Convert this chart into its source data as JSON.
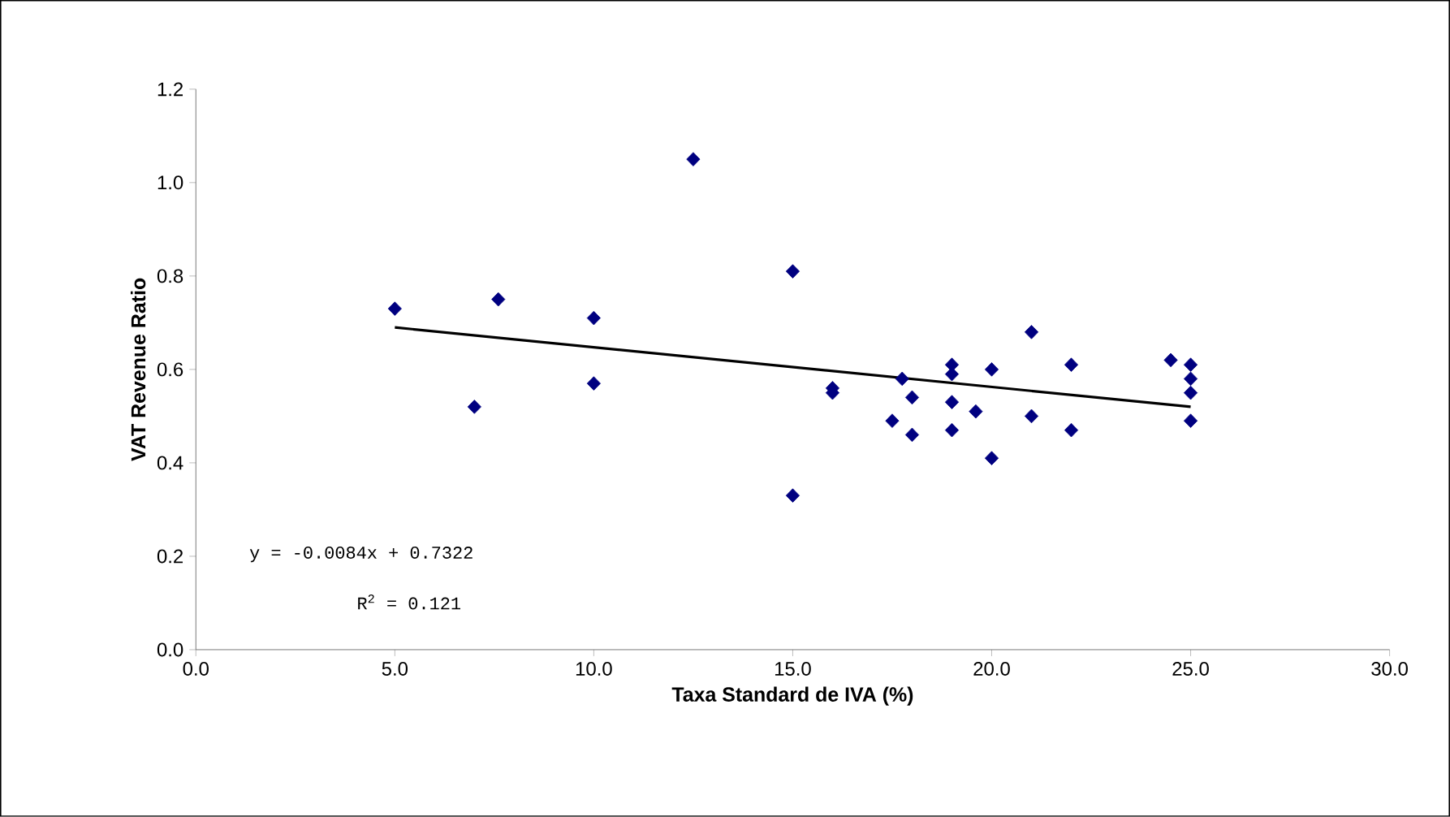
{
  "chart_data": {
    "type": "scatter",
    "xlabel": "Taxa Standard de IVA (%)",
    "ylabel": "VAT Revenue Ratio",
    "xlim": [
      0,
      30
    ],
    "ylim": [
      0,
      1.2
    ],
    "xticks": [
      {
        "value": 0,
        "label": "0.0"
      },
      {
        "value": 5,
        "label": "5.0"
      },
      {
        "value": 10,
        "label": "10.0"
      },
      {
        "value": 15,
        "label": "15.0"
      },
      {
        "value": 20,
        "label": "20.0"
      },
      {
        "value": 25,
        "label": "25.0"
      },
      {
        "value": 30,
        "label": "30.0"
      }
    ],
    "yticks": [
      {
        "value": 0,
        "label": "0.0"
      },
      {
        "value": 0.2,
        "label": "0.2"
      },
      {
        "value": 0.4,
        "label": "0.4"
      },
      {
        "value": 0.6,
        "label": "0.6"
      },
      {
        "value": 0.8,
        "label": "0.8"
      },
      {
        "value": 1.0,
        "label": "1.0"
      },
      {
        "value": 1.2,
        "label": "1.2"
      }
    ],
    "marker": "diamond",
    "grid": false,
    "series": [
      {
        "color": "#000080",
        "x": [
          5,
          7,
          7.6,
          10,
          10,
          12.5,
          15,
          15,
          16,
          16,
          17.75,
          17.5,
          18,
          18,
          19,
          19,
          19,
          19,
          19.6,
          20,
          20,
          21,
          21,
          22,
          22,
          24.5,
          25,
          25,
          25,
          25
        ],
        "values": [
          0.73,
          0.52,
          0.75,
          0.71,
          0.57,
          1.05,
          0.81,
          0.33,
          0.56,
          0.55,
          0.58,
          0.49,
          0.54,
          0.46,
          0.61,
          0.59,
          0.53,
          0.47,
          0.51,
          0.6,
          0.41,
          0.68,
          0.5,
          0.61,
          0.47,
          0.62,
          0.61,
          0.58,
          0.55,
          0.49
        ]
      },
      {
        "type": "line",
        "marker": "none",
        "color": "#000000",
        "x": [
          5,
          25
        ],
        "values": [
          0.69,
          0.52
        ]
      }
    ],
    "annotations": [
      "y = -0.0084x + 0.7322",
      "R$^{2}$ = 0.121"
    ]
  }
}
